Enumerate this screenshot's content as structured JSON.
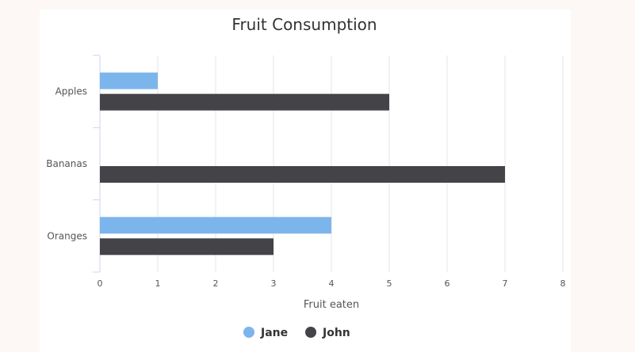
{
  "chart_data": {
    "type": "bar",
    "orientation": "horizontal",
    "title": "Fruit Consumption",
    "xlabel": "Fruit eaten",
    "ylabel": "",
    "categories": [
      "Apples",
      "Bananas",
      "Oranges"
    ],
    "series": [
      {
        "name": "Jane",
        "color": "#7cb5ec",
        "values": [
          1,
          0,
          4
        ]
      },
      {
        "name": "John",
        "color": "#434348",
        "values": [
          5,
          7,
          3
        ]
      }
    ],
    "xlim": [
      0,
      8
    ],
    "xticks": [
      "0",
      "1",
      "2",
      "3",
      "4",
      "5",
      "6",
      "7",
      "8"
    ],
    "grid": true,
    "legend_position": "bottom-center"
  }
}
